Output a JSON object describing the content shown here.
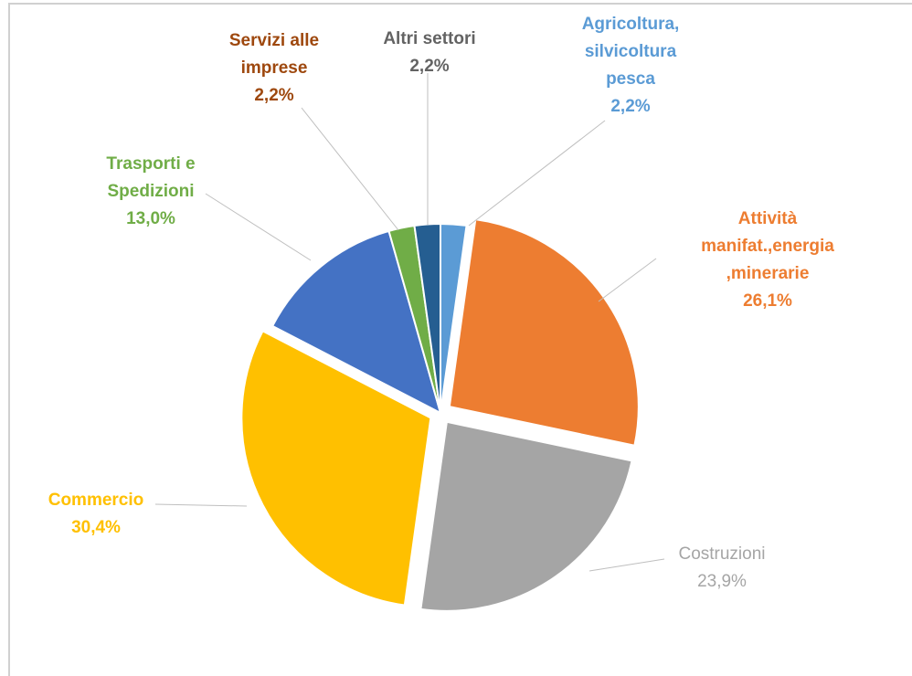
{
  "chart_data": {
    "type": "pie",
    "categories": [
      "Agricoltura, silvicoltura pesca",
      "Attività manifat.,energia ,minerarie",
      "Costruzioni",
      "Commercio",
      "Trasporti e Spedizioni",
      "Servizi alle imprese",
      "Altri settori"
    ],
    "values": [
      2.2,
      26.1,
      23.9,
      30.4,
      13.0,
      2.2,
      2.2
    ],
    "value_labels": [
      "2,2%",
      "26,1%",
      "23,9%",
      "30,4%",
      "13,0%",
      "2,2%",
      "2,2%"
    ],
    "colors": [
      "#5b9bd5",
      "#ed7d31",
      "#a5a5a5",
      "#ffc000",
      "#4472c4",
      "#70ad47",
      "#255e91"
    ],
    "label_colors": [
      "#5b9bd5",
      "#ed7d31",
      "#a5a5a5",
      "#ffc000",
      "#70ad47",
      "#9e480e",
      "#636363"
    ],
    "exploded": [
      false,
      true,
      true,
      true,
      false,
      false,
      false
    ]
  }
}
